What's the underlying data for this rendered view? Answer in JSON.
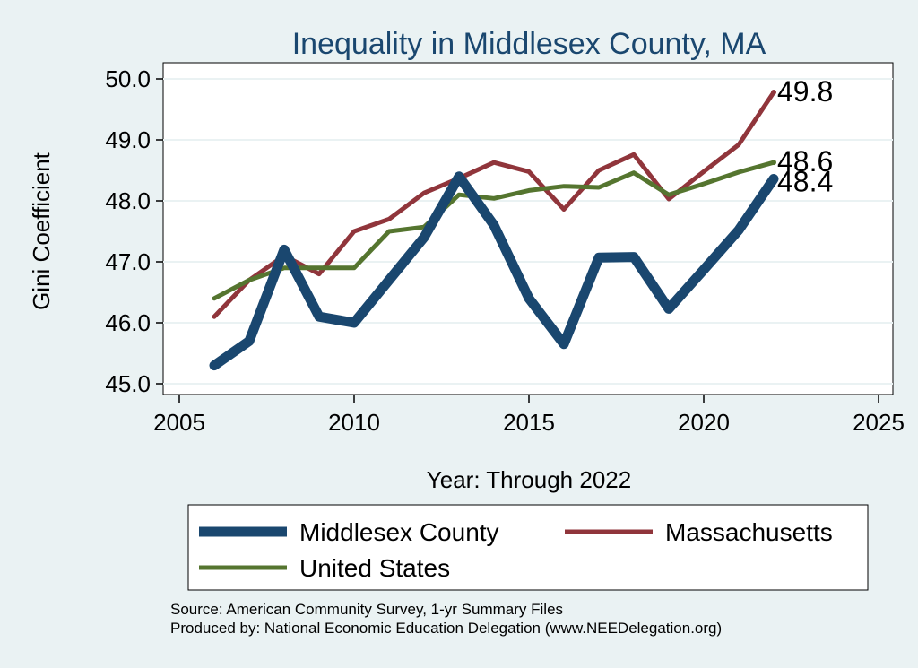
{
  "chart_data": {
    "type": "line",
    "title": "Inequality in Middlesex County, MA",
    "xlabel": "Year: Through 2022",
    "ylabel": "Gini Coefficient",
    "xlim": [
      2005,
      2025
    ],
    "ylim": [
      45.0,
      50.0
    ],
    "x_ticks": [
      2005,
      2010,
      2015,
      2020,
      2025
    ],
    "y_ticks": [
      45.0,
      46.0,
      47.0,
      48.0,
      49.0,
      50.0
    ],
    "x_tick_labels": [
      "2005",
      "2010",
      "2015",
      "2020",
      "2025"
    ],
    "y_tick_labels": [
      "45.0",
      "46.0",
      "47.0",
      "48.0",
      "49.0",
      "50.0"
    ],
    "grid": true,
    "legend_position": "bottom",
    "x": [
      2006,
      2007,
      2008,
      2009,
      2010,
      2011,
      2012,
      2013,
      2014,
      2015,
      2016,
      2017,
      2018,
      2019,
      2020,
      2021,
      2022
    ],
    "series": [
      {
        "name": "Middlesex County",
        "color": "#1a476f",
        "values": [
          45.3,
          45.7,
          47.2,
          46.1,
          46.0,
          46.7,
          47.4,
          48.4,
          47.6,
          46.4,
          45.65,
          47.07,
          47.08,
          46.23,
          46.87,
          47.52,
          48.36
        ],
        "end_label": "48.4"
      },
      {
        "name": "Massachusetts",
        "color": "#90353b",
        "values": [
          46.1,
          46.7,
          47.1,
          46.8,
          47.5,
          47.7,
          48.13,
          48.37,
          48.63,
          48.48,
          47.86,
          48.5,
          48.76,
          48.03,
          48.48,
          48.92,
          49.78
        ],
        "end_label": "49.8"
      },
      {
        "name": "United States",
        "color": "#55752f",
        "values": [
          46.4,
          46.7,
          46.9,
          46.9,
          46.9,
          47.5,
          47.57,
          48.1,
          48.04,
          48.17,
          48.24,
          48.22,
          48.46,
          48.1,
          48.28,
          48.47,
          48.63
        ],
        "end_label": "48.6"
      }
    ]
  },
  "footer": {
    "source": "Source: American Community Survey, 1-yr Summary Files",
    "produced_by": "Produced by: National Economic Education Delegation (www.NEEDelegation.org)"
  }
}
